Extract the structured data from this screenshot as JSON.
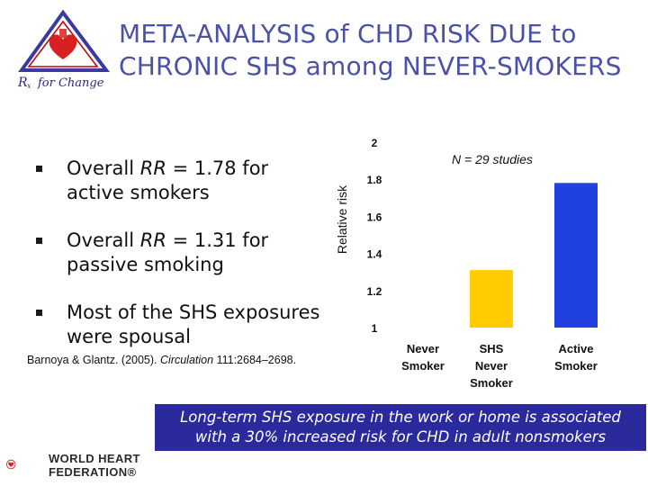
{
  "title": {
    "line1": "META-ANALYSIS of CHD RISK DUE to",
    "line2": "CHRONIC SHS among NEVER-SMOKERS"
  },
  "logo": {
    "text": "Rx for Change"
  },
  "bullets": [
    {
      "prefix": "Overall ",
      "italic": "RR",
      "rest": " = 1.78 for active smokers"
    },
    {
      "prefix": "Overall ",
      "italic": "RR",
      "rest": " = 1.31 for passive smoking"
    },
    {
      "prefix": "Most of the SHS exposures were spousal",
      "italic": "",
      "rest": ""
    }
  ],
  "citation": {
    "authors": "Barnoya & Glantz. (2005).",
    "journal": "Circulation",
    "details": "111:2684–2698."
  },
  "chart_data": {
    "type": "bar",
    "categories": [
      "Never Smoker",
      "SHS Never Smoker",
      "Active Smoker"
    ],
    "category_lines": [
      [
        "Never",
        "Smoker"
      ],
      [
        "SHS",
        "Never",
        "Smoker"
      ],
      [
        "Active",
        "Smoker"
      ]
    ],
    "values": [
      1.0,
      1.31,
      1.78
    ],
    "colors": [
      "#ffffff",
      "#ffcc00",
      "#2040e0"
    ],
    "ylabel": "Relative risk",
    "ylim": [
      1,
      2
    ],
    "yticks": [
      "2",
      "1.8",
      "1.6",
      "1.4",
      "1.2",
      "1"
    ],
    "annotation": "N = 29 studies",
    "grid": false
  },
  "banner": {
    "line1": "Long-term SHS exposure in the work or home is associated",
    "line2": "with a 30% increased risk for CHD in adult nonsmokers"
  },
  "footer_logo": {
    "line1": "WORLD HEART",
    "line2": "FEDERATION®"
  }
}
